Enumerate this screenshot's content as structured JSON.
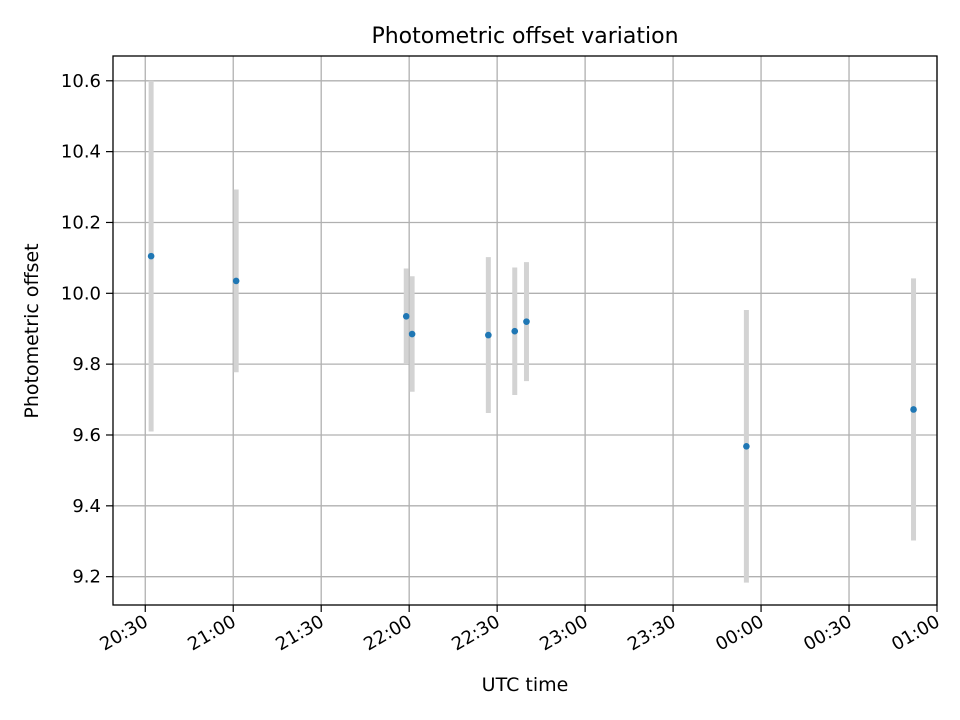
{
  "chart_data": {
    "type": "scatter",
    "title": "Photometric offset variation",
    "xlabel": "UTC time",
    "ylabel": "Photometric offset",
    "x_ticks": [
      "20:30",
      "21:00",
      "21:30",
      "22:00",
      "22:30",
      "23:00",
      "23:30",
      "00:00",
      "00:30",
      "01:00"
    ],
    "y_ticks": [
      "9.2",
      "9.4",
      "9.6",
      "9.8",
      "10.0",
      "10.2",
      "10.4",
      "10.6"
    ],
    "xlim": [
      "20:19",
      "01:00"
    ],
    "ylim": [
      9.12,
      10.67
    ],
    "grid": true,
    "marker_color": "#1f77b4",
    "errorbar_color": "#d3d3d3",
    "points": [
      {
        "time": "20:32",
        "y": 10.105,
        "err": 0.495
      },
      {
        "time": "21:01",
        "y": 10.035,
        "err": 0.258
      },
      {
        "time": "21:59",
        "y": 9.935,
        "err": 0.135
      },
      {
        "time": "22:01",
        "y": 9.885,
        "err": 0.163
      },
      {
        "time": "22:27",
        "y": 9.882,
        "err": 0.22
      },
      {
        "time": "22:36",
        "y": 9.893,
        "err": 0.18
      },
      {
        "time": "22:40",
        "y": 9.92,
        "err": 0.168
      },
      {
        "time": "23:55",
        "y": 9.568,
        "err": 0.385
      },
      {
        "time": "00:52",
        "y": 9.672,
        "err": 0.37
      }
    ]
  }
}
